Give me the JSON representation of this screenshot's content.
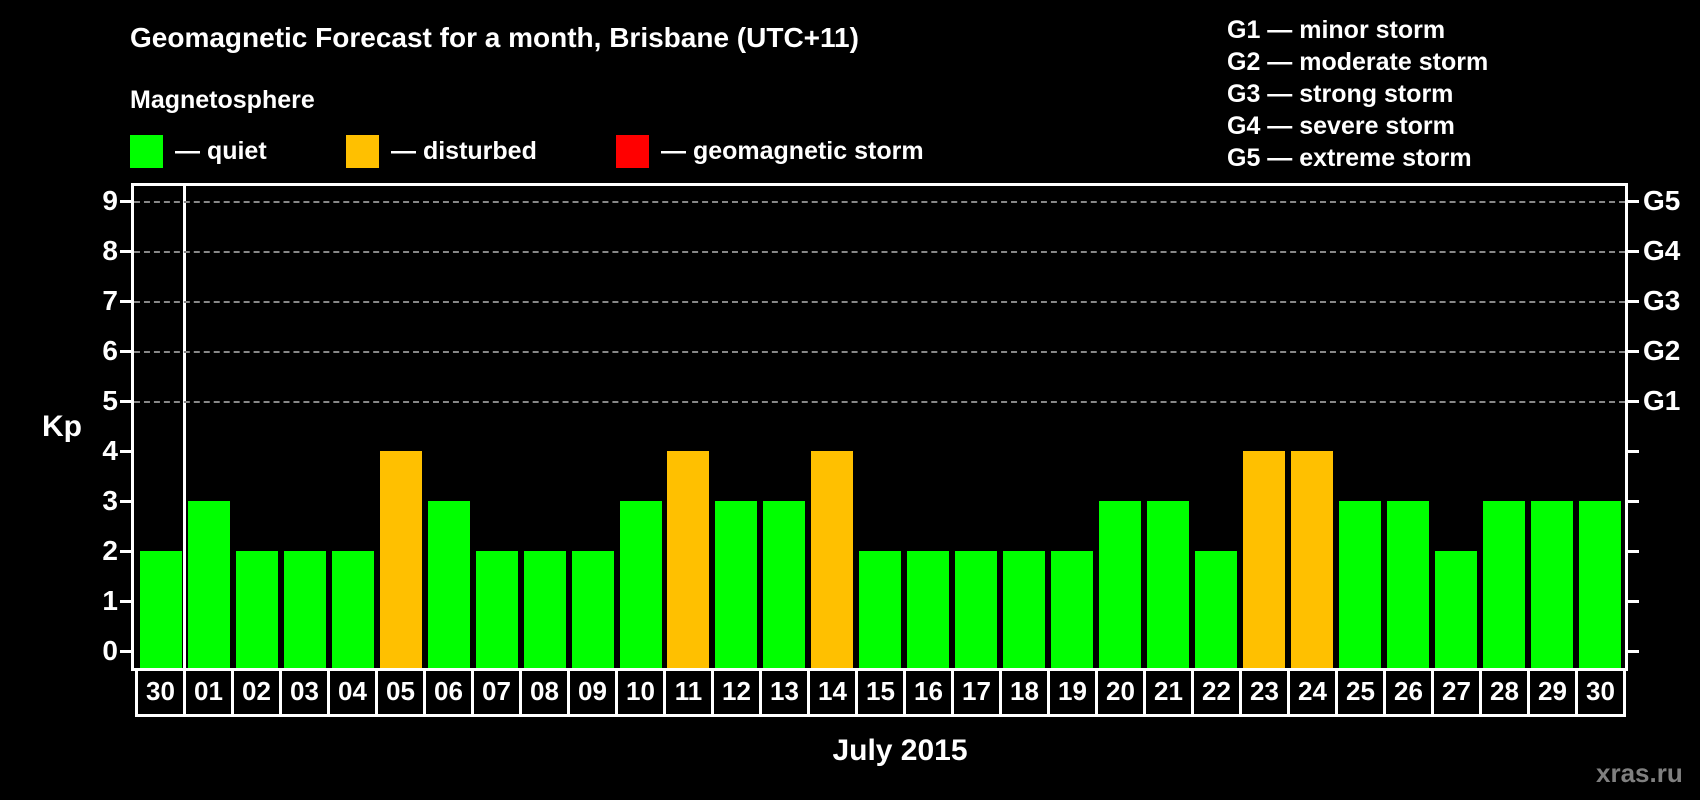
{
  "title": "Geomagnetic Forecast for a month, Brisbane (UTC+11)",
  "subtitle": "Magnetosphere",
  "legend": [
    {
      "label": "— quiet",
      "color": "#00ff00"
    },
    {
      "label": "— disturbed",
      "color": "#ffc000"
    },
    {
      "label": "— geomagnetic storm",
      "color": "#ff0000"
    }
  ],
  "storm_levels": [
    "G1 — minor storm",
    "G2 — moderate storm",
    "G3 — strong storm",
    "G4 — severe storm",
    "G5 — extreme storm"
  ],
  "y_axis_label": "Kp",
  "x_axis_label": "July 2015",
  "watermark": "xras.ru",
  "colors": {
    "quiet": "#00ff00",
    "disturbed": "#ffc000",
    "storm": "#ff0000",
    "background": "#000000",
    "grid": "#888888"
  },
  "chart_data": {
    "type": "bar",
    "title": "Geomagnetic Forecast for a month, Brisbane (UTC+11)",
    "xlabel": "July 2015",
    "ylabel": "Kp",
    "ylim": [
      0,
      9
    ],
    "yticks": [
      0,
      1,
      2,
      3,
      4,
      5,
      6,
      7,
      8,
      9
    ],
    "right_axis_labels": {
      "5": "G1",
      "6": "G2",
      "7": "G3",
      "8": "G4",
      "9": "G5"
    },
    "grid": "dashed horizontal lines at Kp 5-9",
    "categories": [
      "30",
      "01",
      "02",
      "03",
      "04",
      "05",
      "06",
      "07",
      "08",
      "09",
      "10",
      "11",
      "12",
      "13",
      "14",
      "15",
      "16",
      "17",
      "18",
      "19",
      "20",
      "21",
      "22",
      "23",
      "24",
      "25",
      "26",
      "27",
      "28",
      "29",
      "30"
    ],
    "values": [
      2,
      3,
      2,
      2,
      2,
      4,
      3,
      2,
      2,
      2,
      3,
      4,
      3,
      3,
      4,
      2,
      2,
      2,
      2,
      2,
      3,
      3,
      2,
      4,
      4,
      3,
      3,
      2,
      3,
      3,
      3
    ],
    "status": [
      "quiet",
      "quiet",
      "quiet",
      "quiet",
      "quiet",
      "disturbed",
      "quiet",
      "quiet",
      "quiet",
      "quiet",
      "quiet",
      "disturbed",
      "quiet",
      "quiet",
      "disturbed",
      "quiet",
      "quiet",
      "quiet",
      "quiet",
      "quiet",
      "quiet",
      "quiet",
      "quiet",
      "disturbed",
      "disturbed",
      "quiet",
      "quiet",
      "quiet",
      "quiet",
      "quiet",
      "quiet"
    ],
    "legend": [
      "quiet",
      "disturbed",
      "geomagnetic storm"
    ]
  }
}
